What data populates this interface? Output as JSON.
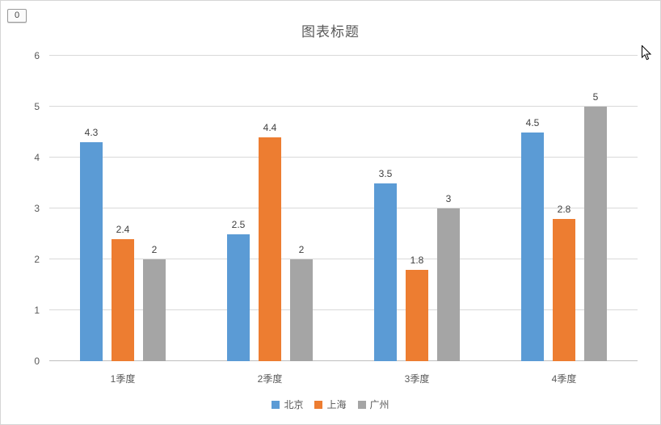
{
  "page": {
    "badge": "0"
  },
  "chart_data": {
    "type": "bar",
    "title": "图表标题",
    "categories": [
      "1季度",
      "2季度",
      "3季度",
      "4季度"
    ],
    "series": [
      {
        "name": "北京",
        "color": "#5B9BD5",
        "values": [
          4.3,
          2.5,
          3.5,
          4.5
        ]
      },
      {
        "name": "上海",
        "color": "#ED7D31",
        "values": [
          2.4,
          4.4,
          1.8,
          2.8
        ]
      },
      {
        "name": "广州",
        "color": "#A5A5A5",
        "values": [
          2,
          2,
          3,
          5
        ]
      }
    ],
    "xlabel": "",
    "ylabel": "",
    "ylim": [
      0,
      6
    ],
    "yticks": [
      0,
      1,
      2,
      3,
      4,
      5,
      6
    ],
    "grid": true,
    "legend_position": "bottom"
  }
}
